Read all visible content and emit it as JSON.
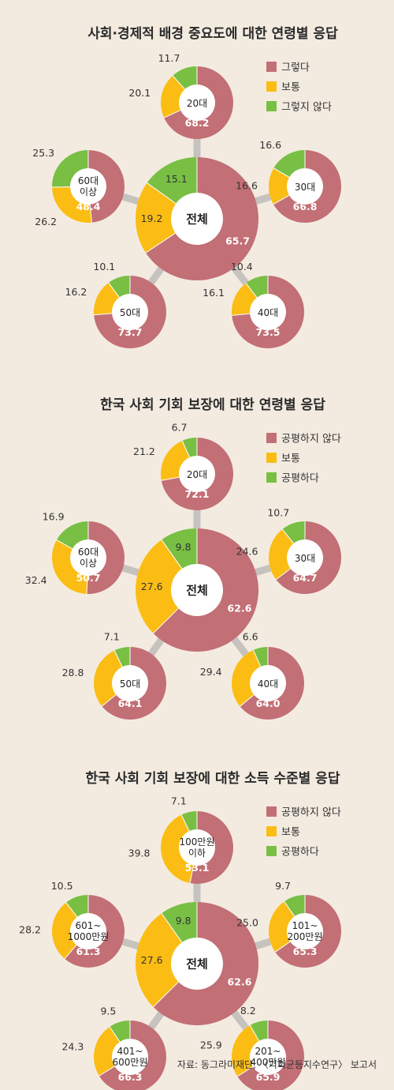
{
  "colors": {
    "bad": "#c26f75",
    "mid": "#fbbd14",
    "good": "#78bf44",
    "connector": "#c6c2be"
  },
  "source": "자료: 동그라미재단, 〈기회균등지수연구〉 보고서",
  "chart_data": [
    {
      "type": "pie",
      "title": "사회·경제적 배경 중요도에 대한 연령별 응답",
      "legend": [
        "그렇다",
        "보통",
        "그렇지 않다"
      ],
      "groups": [
        {
          "label": "전체",
          "values": [
            65.7,
            19.2,
            15.1
          ]
        },
        {
          "label": "20대",
          "values": [
            68.2,
            20.1,
            11.7
          ]
        },
        {
          "label": "30대",
          "values": [
            66.8,
            16.6,
            16.6
          ]
        },
        {
          "label": "40대",
          "values": [
            73.5,
            16.1,
            10.4
          ]
        },
        {
          "label": "50대",
          "values": [
            73.7,
            16.2,
            10.1
          ]
        },
        {
          "label": "60대 이상",
          "values": [
            48.4,
            26.2,
            25.3
          ]
        }
      ]
    },
    {
      "type": "pie",
      "title": "한국 사회 기회 보장에 대한 연령별 응답",
      "legend": [
        "공평하지 않다",
        "보통",
        "공평하다"
      ],
      "groups": [
        {
          "label": "전체",
          "values": [
            62.6,
            27.6,
            9.8
          ]
        },
        {
          "label": "20대",
          "values": [
            72.1,
            21.2,
            6.7
          ]
        },
        {
          "label": "30대",
          "values": [
            64.7,
            24.6,
            10.7
          ]
        },
        {
          "label": "40대",
          "values": [
            64.0,
            29.4,
            6.6
          ]
        },
        {
          "label": "50대",
          "values": [
            64.1,
            28.8,
            7.1
          ]
        },
        {
          "label": "60대 이상",
          "values": [
            50.7,
            32.4,
            16.9
          ]
        }
      ]
    },
    {
      "type": "pie",
      "title": "한국 사회 기회 보장에 대한 소득 수준별 응답",
      "legend": [
        "공평하지 않다",
        "보통",
        "공평하다"
      ],
      "groups": [
        {
          "label": "전체",
          "values": [
            62.6,
            27.6,
            9.8
          ]
        },
        {
          "label": "100만원 이하",
          "values": [
            53.1,
            39.8,
            7.1
          ]
        },
        {
          "label": "101~ 200만원",
          "values": [
            65.3,
            25.0,
            9.7
          ]
        },
        {
          "label": "201~ 400만원",
          "values": [
            65.9,
            25.9,
            8.2
          ]
        },
        {
          "label": "401~ 600만원",
          "values": [
            66.3,
            24.3,
            9.5
          ]
        },
        {
          "label": "601~ 1000만원",
          "values": [
            61.3,
            28.2,
            10.5
          ]
        }
      ]
    }
  ]
}
